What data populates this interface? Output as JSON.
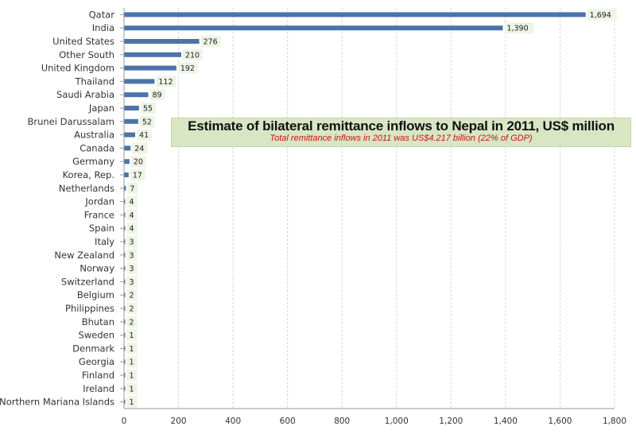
{
  "chart_data": {
    "type": "bar",
    "orientation": "horizontal",
    "title": "Estimate of bilateral remittance inflows to Nepal in 2011, US$ million",
    "subtitle": "Total remittance inflows in 2011 was US$4.217 billion (22% of GDP)",
    "xlabel": "",
    "ylabel": "",
    "xlim": [
      0,
      1800
    ],
    "grid": true,
    "legend": "none",
    "bar_color": "#4a74a8",
    "label_box_color": "#eef4e6",
    "categories": [
      "Qatar",
      "India",
      "United States",
      "Other South",
      "United Kingdom",
      "Thailand",
      "Saudi Arabia",
      "Japan",
      "Brunei Darussalam",
      "Australia",
      "Canada",
      "Germany",
      "Korea, Rep.",
      "Netherlands",
      "Jordan",
      "France",
      "Spain",
      "Italy",
      "New Zealand",
      "Norway",
      "Switzerland",
      "Belgium",
      "Philippines",
      "Bhutan",
      "Sweden",
      "Denmark",
      "Georgia",
      "Finland",
      "Ireland",
      "Northern Mariana Islands"
    ],
    "values": [
      1694,
      1390,
      276,
      210,
      192,
      112,
      89,
      55,
      52,
      41,
      24,
      20,
      17,
      7,
      4,
      4,
      4,
      3,
      3,
      3,
      3,
      2,
      2,
      2,
      1,
      1,
      1,
      1,
      1,
      1
    ],
    "value_labels": [
      "1,694",
      "1,390",
      "276",
      "210",
      "192",
      "112",
      "89",
      "55",
      "52",
      "41",
      "24",
      "20",
      "17",
      "7",
      "4",
      "4",
      "4",
      "3",
      "3",
      "3",
      "3",
      "2",
      "2",
      "2",
      "1",
      "1",
      "1",
      "1",
      "1",
      "1"
    ],
    "x_ticks": [
      0,
      200,
      400,
      600,
      800,
      1000,
      1200,
      1400,
      1600,
      1800
    ],
    "x_tick_labels": [
      "0",
      "200",
      "400",
      "600",
      "800",
      "1,000",
      "1,200",
      "1,400",
      "1,600",
      "1,800"
    ]
  }
}
